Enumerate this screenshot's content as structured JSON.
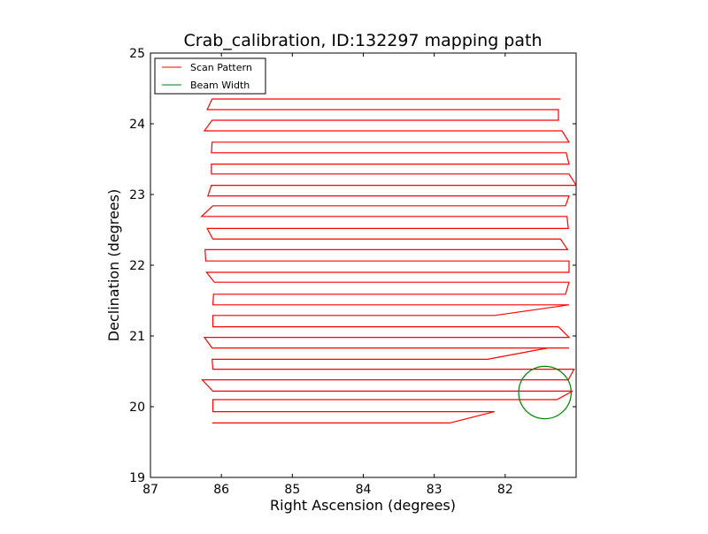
{
  "chart_data": {
    "type": "line",
    "title": "Crab_calibration, ID:132297 mapping path",
    "xlabel": "Right Ascension (degrees)",
    "ylabel": "Declination (degrees)",
    "xlim": [
      87.0,
      81.0
    ],
    "ylim": [
      19.0,
      25.0
    ],
    "x_ticks": [
      87,
      86,
      85,
      84,
      83,
      82
    ],
    "y_ticks": [
      19,
      20,
      21,
      22,
      23,
      24,
      25
    ],
    "grid": false,
    "legend_position": "top-left",
    "series": [
      {
        "name": "Scan Pattern",
        "color": "#ff0000",
        "points": [
          [
            86.13,
            19.77
          ],
          [
            82.78,
            19.77
          ],
          [
            82.15,
            19.93
          ],
          [
            86.12,
            19.93
          ],
          [
            86.12,
            20.1
          ],
          [
            84.57,
            20.1
          ],
          [
            82.08,
            20.1
          ],
          [
            81.27,
            20.1
          ],
          [
            81.05,
            20.22
          ],
          [
            86.12,
            20.22
          ],
          [
            86.27,
            20.38
          ],
          [
            81.11,
            20.38
          ],
          [
            81.03,
            20.53
          ],
          [
            86.12,
            20.53
          ],
          [
            86.13,
            20.67
          ],
          [
            82.25,
            20.67
          ],
          [
            81.4,
            20.83
          ],
          [
            81.1,
            20.83
          ],
          [
            86.13,
            20.83
          ],
          [
            86.24,
            20.98
          ],
          [
            81.1,
            20.98
          ],
          [
            81.25,
            21.13
          ],
          [
            86.12,
            21.13
          ],
          [
            86.12,
            21.29
          ],
          [
            82.15,
            21.29
          ],
          [
            81.1,
            21.44
          ],
          [
            86.12,
            21.44
          ],
          [
            86.11,
            21.59
          ],
          [
            81.15,
            21.59
          ],
          [
            81.1,
            21.76
          ],
          [
            86.1,
            21.76
          ],
          [
            86.21,
            21.9
          ],
          [
            81.1,
            21.9
          ],
          [
            81.1,
            22.06
          ],
          [
            86.22,
            22.06
          ],
          [
            86.23,
            22.22
          ],
          [
            81.12,
            22.22
          ],
          [
            81.22,
            22.37
          ],
          [
            86.12,
            22.37
          ],
          [
            86.2,
            22.52
          ],
          [
            81.11,
            22.52
          ],
          [
            81.13,
            22.69
          ],
          [
            86.28,
            22.69
          ],
          [
            86.12,
            22.84
          ],
          [
            81.15,
            22.84
          ],
          [
            81.1,
            22.98
          ],
          [
            86.19,
            22.98
          ],
          [
            86.14,
            23.13
          ],
          [
            81.0,
            23.13
          ],
          [
            81.1,
            23.29
          ],
          [
            86.14,
            23.29
          ],
          [
            86.14,
            23.43
          ],
          [
            81.1,
            23.43
          ],
          [
            81.14,
            23.59
          ],
          [
            86.14,
            23.59
          ],
          [
            86.13,
            23.74
          ],
          [
            81.1,
            23.74
          ],
          [
            81.2,
            23.9
          ],
          [
            86.24,
            23.9
          ],
          [
            86.13,
            24.05
          ],
          [
            81.25,
            24.05
          ],
          [
            81.25,
            24.2
          ],
          [
            86.2,
            24.2
          ],
          [
            86.13,
            24.35
          ],
          [
            81.22,
            24.35
          ]
        ]
      },
      {
        "name": "Beam Width",
        "color": "#008000",
        "circle": {
          "center": [
            81.44,
            20.2
          ],
          "radius": 0.37
        }
      }
    ]
  }
}
